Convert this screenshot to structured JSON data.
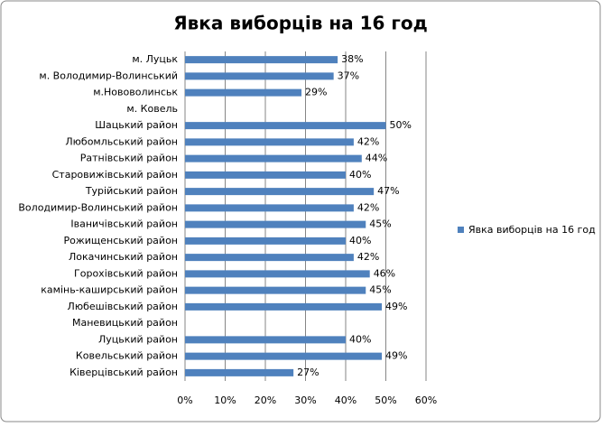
{
  "chart_data": {
    "type": "bar",
    "orientation": "horizontal",
    "title": "Явка виборців на 16 год",
    "categories": [
      "м. Луцьк",
      "м. Володимир-Волинський",
      "м.Нововолинськ",
      "м. Ковель",
      "Шацький район",
      "Любомльський район",
      "Ратнівський район",
      "Старовижівський район",
      "Турійський район",
      "Володимир-Волинський район",
      "Іваничівський район",
      "Рожищенський район",
      "Локачинський район",
      "Горохівський район",
      "камінь-каширський район",
      "Любешівський район",
      "Маневицький район",
      "Луцький район",
      "Ковельський район",
      "Ківерцівський район"
    ],
    "series": [
      {
        "name": "Явка виборців  на 16 год",
        "color": "#4f81bd",
        "values": [
          38,
          37,
          29,
          null,
          50,
          42,
          44,
          40,
          47,
          42,
          45,
          40,
          42,
          46,
          45,
          49,
          null,
          40,
          49,
          27
        ],
        "value_labels": [
          "38%",
          "37%",
          "29%",
          null,
          "50%",
          "42%",
          "44%",
          "40%",
          "47%",
          "42%",
          "45%",
          "40%",
          "42%",
          "46%",
          "45%",
          "49%",
          null,
          "40%",
          "49%",
          "27%"
        ]
      }
    ],
    "xlim": [
      0,
      60
    ],
    "xticks": [
      {
        "value": 0,
        "label": "0%"
      },
      {
        "value": 10,
        "label": "10%"
      },
      {
        "value": 20,
        "label": "20%"
      },
      {
        "value": 30,
        "label": "30%"
      },
      {
        "value": 40,
        "label": "40%"
      },
      {
        "value": 50,
        "label": "50%"
      },
      {
        "value": 60,
        "label": "60%"
      }
    ],
    "grid": true,
    "legend": "right"
  }
}
